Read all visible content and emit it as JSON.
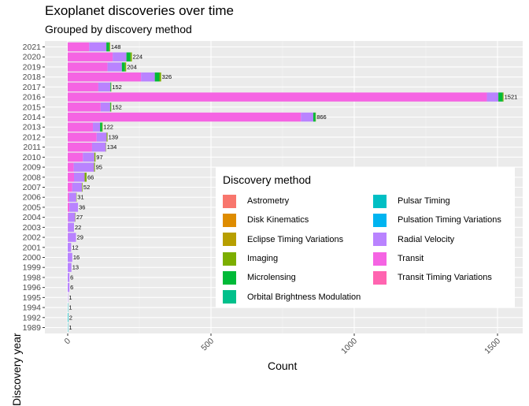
{
  "title": "Exoplanet discoveries over time",
  "subtitle": "Grouped by discovery method",
  "legend_title": "Discovery method",
  "colors": {
    "panel": "#EBEBEB",
    "grid_major": "#FFFFFF",
    "grid_minor": "#F5F5F5"
  },
  "chart_data": {
    "type": "bar",
    "orientation": "horizontal",
    "stacked": true,
    "title": "Exoplanet discoveries over time",
    "subtitle": "Grouped by discovery method",
    "xlabel": "Count",
    "ylabel": "Discovery year",
    "xlim": [
      0,
      1600
    ],
    "x_ticks": [
      0,
      500,
      1000,
      1500
    ],
    "legend_position": "bottom-right inside",
    "categories": [
      "1989",
      "1992",
      "1994",
      "1995",
      "1996",
      "1998",
      "1999",
      "2000",
      "2001",
      "2002",
      "2003",
      "2004",
      "2005",
      "2006",
      "2007",
      "2008",
      "2009",
      "2010",
      "2011",
      "2012",
      "2013",
      "2014",
      "2015",
      "2016",
      "2017",
      "2018",
      "2019",
      "2020",
      "2021"
    ],
    "totals": [
      1,
      2,
      1,
      1,
      6,
      6,
      13,
      16,
      12,
      29,
      22,
      27,
      36,
      31,
      52,
      66,
      95,
      97,
      134,
      139,
      122,
      866,
      152,
      1521,
      152,
      326,
      204,
      224,
      148
    ],
    "series": [
      {
        "name": "Astrometry",
        "color": "#F8766D",
        "values": [
          0,
          0,
          0,
          0,
          0,
          0,
          0,
          0,
          0,
          0,
          0,
          0,
          0,
          0,
          0,
          0,
          0,
          0,
          0,
          0,
          0,
          0,
          0,
          0,
          0,
          0,
          0,
          0,
          0
        ]
      },
      {
        "name": "Disk Kinematics",
        "color": "#DE8C00",
        "values": [
          0,
          0,
          0,
          0,
          0,
          0,
          0,
          0,
          0,
          0,
          0,
          0,
          0,
          0,
          0,
          0,
          0,
          0,
          0,
          0,
          0,
          0,
          0,
          0,
          0,
          0,
          0,
          0,
          0
        ]
      },
      {
        "name": "Eclipse Timing Variations",
        "color": "#B79F00",
        "values": [
          0,
          0,
          0,
          0,
          0,
          0,
          0,
          0,
          0,
          0,
          0,
          0,
          0,
          0,
          0,
          0,
          0,
          0,
          0,
          0,
          0,
          0,
          0,
          0,
          0,
          0,
          0,
          0,
          0
        ]
      },
      {
        "name": "Imaging",
        "color": "#7CAE00",
        "values": [
          0,
          0,
          0,
          0,
          0,
          0,
          0,
          0,
          0,
          0,
          0,
          1,
          0,
          1,
          2,
          7,
          3,
          4,
          1,
          3,
          2,
          1,
          2,
          3,
          1,
          6,
          4,
          5,
          3
        ]
      },
      {
        "name": "Microlensing",
        "color": "#00BA38",
        "values": [
          0,
          0,
          0,
          0,
          0,
          0,
          0,
          0,
          0,
          0,
          0,
          0,
          0,
          0,
          0,
          0,
          0,
          0,
          0,
          0,
          7,
          8,
          2,
          15,
          2,
          16,
          11,
          14,
          10
        ]
      },
      {
        "name": "Orbital Brightness Modulation",
        "color": "#00C08B",
        "values": [
          0,
          0,
          0,
          0,
          0,
          0,
          0,
          0,
          0,
          0,
          0,
          0,
          0,
          0,
          0,
          0,
          0,
          0,
          0,
          0,
          0,
          0,
          0,
          0,
          0,
          0,
          0,
          0,
          0
        ]
      },
      {
        "name": "Pulsar Timing",
        "color": "#00BFC4",
        "values": [
          1,
          2,
          1,
          0,
          0,
          0,
          0,
          0,
          0,
          0,
          0,
          0,
          0,
          0,
          0,
          0,
          0,
          0,
          0,
          0,
          0,
          0,
          0,
          0,
          0,
          0,
          0,
          0,
          0
        ]
      },
      {
        "name": "Pulsation Timing Variations",
        "color": "#00B4F0",
        "values": [
          0,
          0,
          0,
          0,
          0,
          0,
          0,
          0,
          0,
          0,
          0,
          0,
          0,
          0,
          0,
          0,
          0,
          0,
          0,
          0,
          0,
          0,
          0,
          0,
          0,
          0,
          0,
          0,
          0
        ]
      },
      {
        "name": "Radial Velocity",
        "color": "#B983FF",
        "values": [
          0,
          0,
          0,
          1,
          6,
          6,
          13,
          16,
          12,
          28,
          21,
          24,
          30,
          25,
          34,
          37,
          71,
          40,
          48,
          35,
          25,
          43,
          33,
          40,
          42,
          48,
          50,
          48,
          60
        ]
      },
      {
        "name": "Transit",
        "color": "#F564E3",
        "values": [
          0,
          0,
          0,
          0,
          0,
          0,
          0,
          0,
          0,
          1,
          1,
          2,
          6,
          5,
          16,
          22,
          21,
          53,
          85,
          101,
          88,
          814,
          115,
          1463,
          107,
          256,
          139,
          157,
          75
        ]
      },
      {
        "name": "Transit Timing Variations",
        "color": "#FF64B0",
        "values": [
          0,
          0,
          0,
          0,
          0,
          0,
          0,
          0,
          0,
          0,
          0,
          0,
          0,
          0,
          0,
          0,
          0,
          0,
          0,
          0,
          0,
          0,
          0,
          0,
          0,
          0,
          0,
          0,
          0
        ]
      }
    ]
  }
}
